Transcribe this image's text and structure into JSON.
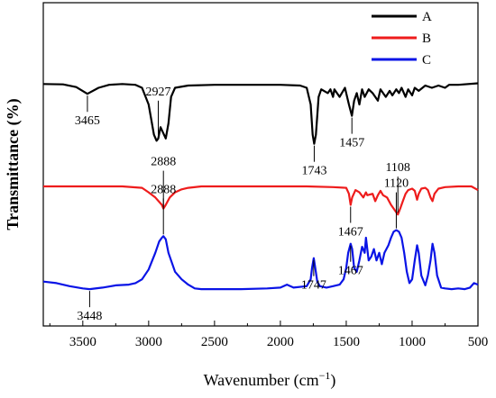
{
  "chart_data": {
    "type": "line",
    "xlabel": "Wavenumber (cm",
    "xlabel_sup": "−1",
    "xlabel_close": ")",
    "ylabel": "Transmittance (%)",
    "xlim": [
      3800,
      500
    ],
    "x_reversed": true,
    "x_ticks": [
      3500,
      3000,
      2500,
      2000,
      1500,
      1000,
      500
    ],
    "y_ticks_shown": false,
    "grid": false,
    "legend_position": "top-right",
    "series": [
      {
        "name": "A",
        "color": "#000000",
        "baseline": 15,
        "points": [
          [
            3800,
            13
          ],
          [
            3650,
            13.5
          ],
          [
            3550,
            17
          ],
          [
            3465,
            26
          ],
          [
            3380,
            18
          ],
          [
            3300,
            14
          ],
          [
            3200,
            13
          ],
          [
            3100,
            14
          ],
          [
            3050,
            18
          ],
          [
            3000,
            40
          ],
          [
            2960,
            80
          ],
          [
            2940,
            88
          ],
          [
            2927,
            85
          ],
          [
            2910,
            70
          ],
          [
            2870,
            85
          ],
          [
            2850,
            65
          ],
          [
            2830,
            30
          ],
          [
            2800,
            18
          ],
          [
            2700,
            15
          ],
          [
            2500,
            14
          ],
          [
            2200,
            14
          ],
          [
            2000,
            14
          ],
          [
            1850,
            15
          ],
          [
            1800,
            18
          ],
          [
            1770,
            40
          ],
          [
            1755,
            80
          ],
          [
            1743,
            92
          ],
          [
            1730,
            80
          ],
          [
            1710,
            30
          ],
          [
            1690,
            20
          ],
          [
            1640,
            25
          ],
          [
            1620,
            20
          ],
          [
            1600,
            30
          ],
          [
            1590,
            20
          ],
          [
            1550,
            30
          ],
          [
            1510,
            18
          ],
          [
            1480,
            40
          ],
          [
            1465,
            50
          ],
          [
            1457,
            55
          ],
          [
            1440,
            35
          ],
          [
            1420,
            25
          ],
          [
            1400,
            40
          ],
          [
            1380,
            20
          ],
          [
            1360,
            30
          ],
          [
            1330,
            20
          ],
          [
            1300,
            25
          ],
          [
            1260,
            35
          ],
          [
            1240,
            20
          ],
          [
            1200,
            30
          ],
          [
            1170,
            22
          ],
          [
            1150,
            28
          ],
          [
            1120,
            20
          ],
          [
            1100,
            25
          ],
          [
            1080,
            18
          ],
          [
            1050,
            30
          ],
          [
            1030,
            20
          ],
          [
            1000,
            28
          ],
          [
            980,
            18
          ],
          [
            950,
            22
          ],
          [
            900,
            15
          ],
          [
            850,
            18
          ],
          [
            800,
            15
          ],
          [
            750,
            18
          ],
          [
            720,
            14
          ],
          [
            650,
            14
          ],
          [
            500,
            12
          ]
        ],
        "annotations": [
          {
            "label": "3465",
            "x": 3465,
            "y": 26,
            "side": "below"
          },
          {
            "label": "2927",
            "x": 2927,
            "y": 85,
            "side": "above"
          },
          {
            "label": "1743",
            "x": 1743,
            "y": 92,
            "side": "below"
          },
          {
            "label": "1457",
            "x": 1457,
            "y": 55,
            "side": "below"
          }
        ]
      },
      {
        "name": "B",
        "color": "#ee1c1c",
        "baseline": 0,
        "points": [
          [
            3800,
            0
          ],
          [
            3400,
            0
          ],
          [
            3200,
            0
          ],
          [
            3050,
            2
          ],
          [
            3000,
            8
          ],
          [
            2950,
            15
          ],
          [
            2900,
            25
          ],
          [
            2888,
            30
          ],
          [
            2870,
            25
          ],
          [
            2840,
            15
          ],
          [
            2800,
            8
          ],
          [
            2750,
            4
          ],
          [
            2700,
            2
          ],
          [
            2600,
            0
          ],
          [
            2300,
            0
          ],
          [
            2000,
            0
          ],
          [
            1800,
            0
          ],
          [
            1600,
            1
          ],
          [
            1500,
            2
          ],
          [
            1480,
            10
          ],
          [
            1467,
            25
          ],
          [
            1455,
            15
          ],
          [
            1430,
            5
          ],
          [
            1400,
            8
          ],
          [
            1370,
            15
          ],
          [
            1350,
            8
          ],
          [
            1340,
            12
          ],
          [
            1300,
            10
          ],
          [
            1280,
            20
          ],
          [
            1260,
            12
          ],
          [
            1240,
            6
          ],
          [
            1220,
            12
          ],
          [
            1190,
            15
          ],
          [
            1160,
            25
          ],
          [
            1140,
            30
          ],
          [
            1120,
            35
          ],
          [
            1108,
            38
          ],
          [
            1090,
            30
          ],
          [
            1070,
            20
          ],
          [
            1050,
            10
          ],
          [
            1030,
            5
          ],
          [
            1000,
            3
          ],
          [
            980,
            6
          ],
          [
            962,
            18
          ],
          [
            950,
            10
          ],
          [
            930,
            3
          ],
          [
            900,
            2
          ],
          [
            880,
            5
          ],
          [
            860,
            15
          ],
          [
            845,
            20
          ],
          [
            830,
            10
          ],
          [
            800,
            3
          ],
          [
            750,
            1
          ],
          [
            650,
            0
          ],
          [
            550,
            0
          ],
          [
            500,
            5
          ]
        ],
        "annotations": [
          {
            "label": "2888",
            "x": 2888,
            "y": 30,
            "side": "above"
          },
          {
            "label": "1467",
            "x": 1467,
            "y": 25,
            "side": "below"
          },
          {
            "label": "1108",
            "x": 1108,
            "y": 38,
            "side": "above"
          }
        ]
      },
      {
        "name": "C",
        "color": "#0a14e6",
        "baseline": -50,
        "points": [
          [
            3800,
            -42
          ],
          [
            3700,
            -40
          ],
          [
            3600,
            -36
          ],
          [
            3500,
            -33
          ],
          [
            3448,
            -32
          ],
          [
            3350,
            -34
          ],
          [
            3250,
            -37
          ],
          [
            3150,
            -38
          ],
          [
            3100,
            -40
          ],
          [
            3050,
            -45
          ],
          [
            3000,
            -58
          ],
          [
            2950,
            -80
          ],
          [
            2920,
            -95
          ],
          [
            2900,
            -100
          ],
          [
            2888,
            -102
          ],
          [
            2870,
            -98
          ],
          [
            2850,
            -80
          ],
          [
            2800,
            -55
          ],
          [
            2750,
            -45
          ],
          [
            2700,
            -38
          ],
          [
            2650,
            -33
          ],
          [
            2600,
            -32
          ],
          [
            2500,
            -32
          ],
          [
            2300,
            -32
          ],
          [
            2100,
            -33
          ],
          [
            2000,
            -34
          ],
          [
            1950,
            -38
          ],
          [
            1900,
            -34
          ],
          [
            1800,
            -36
          ],
          [
            1770,
            -45
          ],
          [
            1760,
            -60
          ],
          [
            1747,
            -73
          ],
          [
            1735,
            -60
          ],
          [
            1720,
            -42
          ],
          [
            1700,
            -36
          ],
          [
            1650,
            -34
          ],
          [
            1600,
            -36
          ],
          [
            1550,
            -38
          ],
          [
            1520,
            -45
          ],
          [
            1500,
            -60
          ],
          [
            1485,
            -80
          ],
          [
            1467,
            -92
          ],
          [
            1455,
            -85
          ],
          [
            1440,
            -60
          ],
          [
            1420,
            -55
          ],
          [
            1400,
            -70
          ],
          [
            1380,
            -88
          ],
          [
            1360,
            -80
          ],
          [
            1350,
            -100
          ],
          [
            1330,
            -70
          ],
          [
            1310,
            -75
          ],
          [
            1290,
            -85
          ],
          [
            1270,
            -70
          ],
          [
            1250,
            -80
          ],
          [
            1230,
            -65
          ],
          [
            1210,
            -80
          ],
          [
            1180,
            -90
          ],
          [
            1160,
            -100
          ],
          [
            1140,
            -108
          ],
          [
            1120,
            -110
          ],
          [
            1100,
            -108
          ],
          [
            1080,
            -100
          ],
          [
            1060,
            -80
          ],
          [
            1040,
            -55
          ],
          [
            1020,
            -40
          ],
          [
            1000,
            -45
          ],
          [
            980,
            -70
          ],
          [
            962,
            -90
          ],
          [
            950,
            -80
          ],
          [
            930,
            -50
          ],
          [
            900,
            -37
          ],
          [
            880,
            -50
          ],
          [
            860,
            -70
          ],
          [
            845,
            -92
          ],
          [
            830,
            -80
          ],
          [
            810,
            -50
          ],
          [
            780,
            -34
          ],
          [
            750,
            -33
          ],
          [
            700,
            -32
          ],
          [
            650,
            -33
          ],
          [
            600,
            -32
          ],
          [
            560,
            -34
          ],
          [
            530,
            -40
          ],
          [
            500,
            -38
          ]
        ],
        "annotations": [
          {
            "label": "3448",
            "x": 3448,
            "y": -32,
            "side": "below"
          },
          {
            "label": "2888",
            "x": 2888,
            "y": -102,
            "side": "above"
          },
          {
            "label": "1747",
            "x": 1747,
            "y": -73,
            "side": "below"
          },
          {
            "label": "1467",
            "x": 1467,
            "y": -92,
            "side": "below"
          },
          {
            "label": "1120",
            "x": 1120,
            "y": -110,
            "side": "above"
          }
        ]
      }
    ]
  }
}
